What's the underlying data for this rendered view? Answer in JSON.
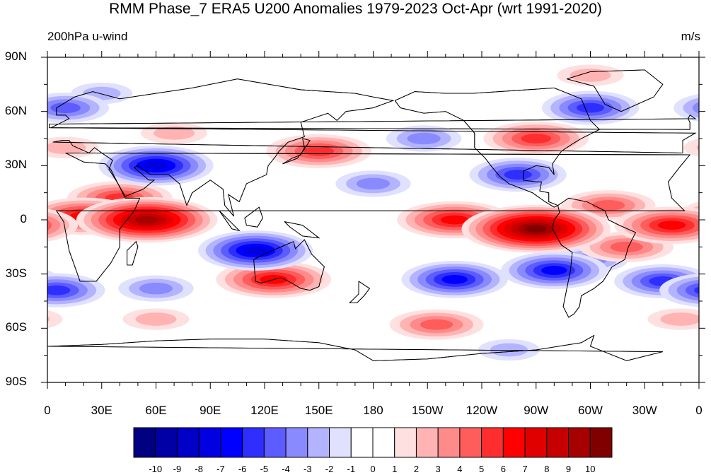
{
  "title": "RMM Phase_7 ERA5 U200 Anomalies 1979-2023 Oct-Apr (wrt 1991-2020)",
  "subtitle_left": "200hPa u-wind",
  "subtitle_right": "m/s",
  "lat_ticks": [
    {
      "label": "90N",
      "lat": 90
    },
    {
      "label": "60N",
      "lat": 60
    },
    {
      "label": "30N",
      "lat": 30
    },
    {
      "label": "0",
      "lat": 0
    },
    {
      "label": "30S",
      "lat": -30
    },
    {
      "label": "60S",
      "lat": -60
    },
    {
      "label": "90S",
      "lat": -90
    }
  ],
  "lon_ticks": [
    {
      "label": "0",
      "lon": 0
    },
    {
      "label": "30E",
      "lon": 30
    },
    {
      "label": "60E",
      "lon": 60
    },
    {
      "label": "90E",
      "lon": 90
    },
    {
      "label": "120E",
      "lon": 120
    },
    {
      "label": "150E",
      "lon": 150
    },
    {
      "label": "180",
      "lon": 180
    },
    {
      "label": "150W",
      "lon": 210
    },
    {
      "label": "120W",
      "lon": 240
    },
    {
      "label": "90W",
      "lon": 270
    },
    {
      "label": "60W",
      "lon": 300
    },
    {
      "label": "30W",
      "lon": 330
    },
    {
      "label": "0",
      "lon": 360
    }
  ],
  "colorbar": {
    "colors": [
      "#000080",
      "#0000a6",
      "#0000c6",
      "#0000e0",
      "#0000ff",
      "#2e2eff",
      "#5c5cff",
      "#8a8aff",
      "#b3b3ff",
      "#e0e0ff",
      "#ffffff",
      "#ffffff",
      "#ffe0e0",
      "#ffb3b3",
      "#ff8a8a",
      "#ff5c5c",
      "#ff2e2e",
      "#ff0000",
      "#e00000",
      "#c60000",
      "#a60000",
      "#800000"
    ],
    "labels": [
      "-10",
      "-9",
      "-8",
      "-7",
      "-6",
      "-5",
      "-4",
      "-3",
      "-2",
      "-1",
      "0",
      "1",
      "2",
      "3",
      "4",
      "5",
      "6",
      "7",
      "8",
      "9",
      "10"
    ]
  },
  "chart_data": {
    "type": "heatmap",
    "variable": "200hPa u-wind",
    "units": "m/s",
    "lon_range": [
      0,
      360
    ],
    "lat_range": [
      -90,
      90
    ],
    "levels": [
      -10,
      -9,
      -8,
      -7,
      -6,
      -5,
      -4,
      -3,
      -2,
      -1,
      0,
      1,
      2,
      3,
      4,
      5,
      6,
      7,
      8,
      9,
      10
    ],
    "anomaly_features": [
      {
        "lon": 55,
        "lat": 0,
        "value": 9
      },
      {
        "lon": 20,
        "lat": 2,
        "value": 6
      },
      {
        "lon": 40,
        "lat": 12,
        "value": 5
      },
      {
        "lon": 270,
        "lat": -5,
        "value": 10
      },
      {
        "lon": 225,
        "lat": 0,
        "value": 6
      },
      {
        "lon": 345,
        "lat": -3,
        "value": 6
      },
      {
        "lon": 310,
        "lat": 8,
        "value": 4
      },
      {
        "lon": 320,
        "lat": -15,
        "value": 4
      },
      {
        "lon": 125,
        "lat": -33,
        "value": 6
      },
      {
        "lon": 150,
        "lat": 38,
        "value": 5
      },
      {
        "lon": 270,
        "lat": 45,
        "value": 5
      },
      {
        "lon": 215,
        "lat": -58,
        "value": 4
      },
      {
        "lon": 10,
        "lat": 40,
        "value": 2
      },
      {
        "lon": 70,
        "lat": 48,
        "value": 2
      },
      {
        "lon": 350,
        "lat": -55,
        "value": 2
      },
      {
        "lon": 60,
        "lat": -55,
        "value": 2
      },
      {
        "lon": 300,
        "lat": 80,
        "value": 2
      },
      {
        "lon": 60,
        "lat": 30,
        "value": -7
      },
      {
        "lon": 115,
        "lat": -17,
        "value": -7
      },
      {
        "lon": 225,
        "lat": -33,
        "value": -6
      },
      {
        "lon": 280,
        "lat": -28,
        "value": -6
      },
      {
        "lon": 340,
        "lat": -34,
        "value": -5
      },
      {
        "lon": 5,
        "lat": -39,
        "value": -5
      },
      {
        "lon": 60,
        "lat": -38,
        "value": -3
      },
      {
        "lon": 260,
        "lat": 25,
        "value": -5
      },
      {
        "lon": 180,
        "lat": 20,
        "value": -3
      },
      {
        "lon": 300,
        "lat": 62,
        "value": -5
      },
      {
        "lon": 10,
        "lat": 62,
        "value": -4
      },
      {
        "lon": 30,
        "lat": 70,
        "value": -2
      },
      {
        "lon": 208,
        "lat": 45,
        "value": -3
      },
      {
        "lon": 300,
        "lat": -22,
        "value": -3
      },
      {
        "lon": 255,
        "lat": -72,
        "value": -2
      }
    ]
  }
}
